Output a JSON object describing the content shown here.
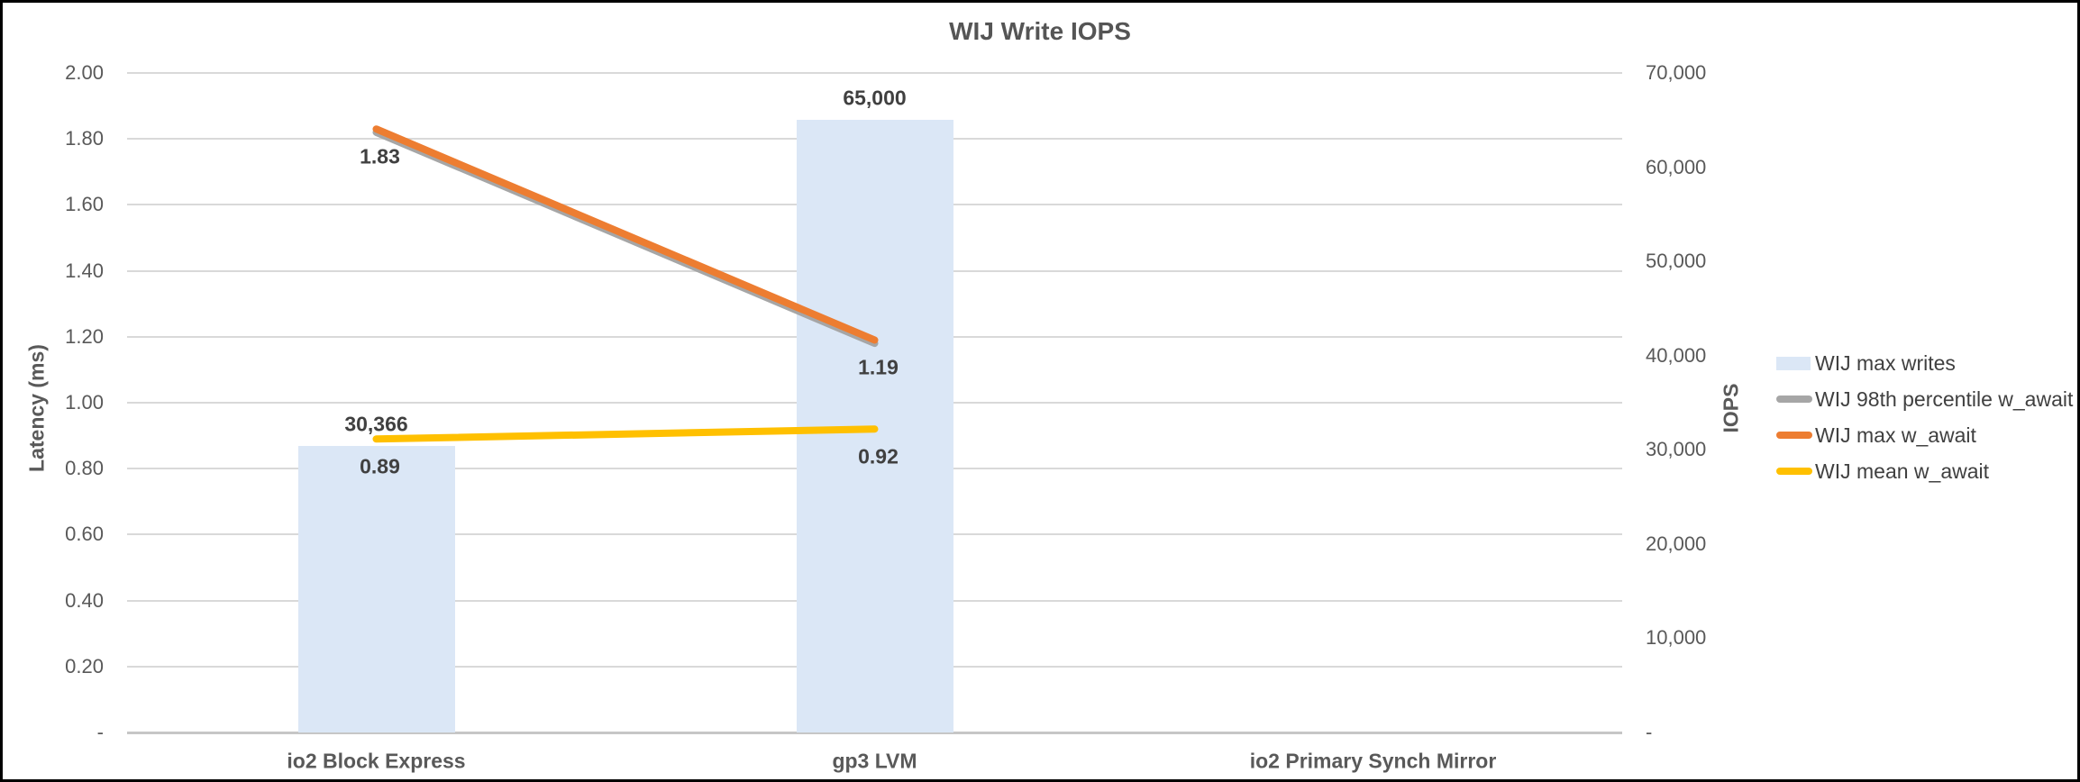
{
  "title": "WIJ Write IOPS",
  "chart_data": {
    "type": "bar",
    "subtype": "combo bar + line, dual axis",
    "title": "WIJ Write IOPS",
    "categories": [
      "io2 Block Express",
      "gp3 LVM",
      "io2 Primary Synch Mirror"
    ],
    "left_axis": {
      "title": "Latency (ms)",
      "min": 0,
      "max": 2,
      "tick_labels": [
        "2.00",
        "1.80",
        "1.60",
        "1.40",
        "1.20",
        "1.00",
        "0.80",
        "0.60",
        "0.40",
        "0.20",
        "-"
      ]
    },
    "right_axis": {
      "title": "IOPS",
      "min": 0,
      "max": 70000,
      "tick_labels": [
        "70,000",
        "60,000",
        "50,000",
        "40,000",
        "30,000",
        "20,000",
        "10,000",
        "-"
      ]
    },
    "bar_series": {
      "name": "WIJ max writes",
      "axis": "right",
      "color": "#dbe7f6",
      "values": [
        30366,
        65000,
        null
      ],
      "data_labels": [
        "30,366",
        "65,000",
        ""
      ]
    },
    "line_series": [
      {
        "name": "WIJ 98th percentile w_await",
        "axis": "left",
        "color": "#a6a6a6",
        "values": [
          1.82,
          1.18,
          null
        ],
        "data_labels": [
          "",
          "",
          ""
        ]
      },
      {
        "name": "WIJ max w_await",
        "axis": "left",
        "color": "#ed7d31",
        "values": [
          1.83,
          1.19,
          null
        ],
        "data_labels": [
          "1.83",
          "1.19",
          ""
        ]
      },
      {
        "name": "WIJ mean w_await",
        "axis": "left",
        "color": "#ffc000",
        "values": [
          0.89,
          0.92,
          null
        ],
        "data_labels": [
          "0.89",
          "0.92",
          ""
        ]
      }
    ],
    "legend": {
      "position": "right",
      "entries": [
        "WIJ max writes",
        "WIJ 98th percentile w_await",
        "WIJ max w_await",
        "WIJ mean w_await"
      ]
    },
    "grid": "horizontal",
    "gridline_color": "#d9d9d9"
  }
}
